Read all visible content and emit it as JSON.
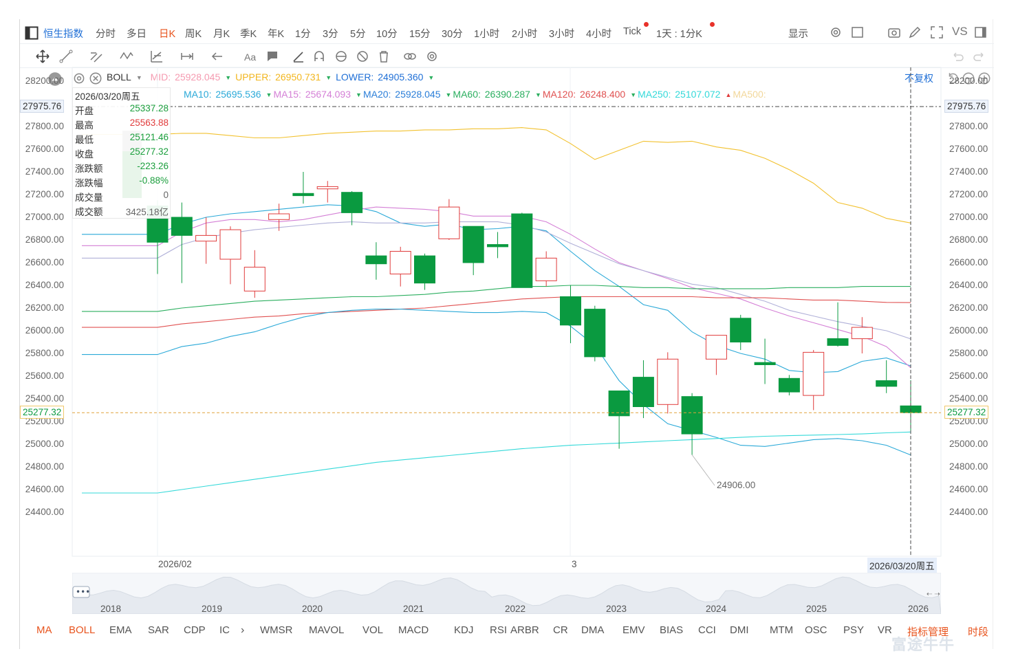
{
  "top_bar": {
    "title": "恒生指数",
    "periods": [
      "分时",
      "多日",
      "日K",
      "周K",
      "月K",
      "季K",
      "年K",
      "1分",
      "3分",
      "5分",
      "10分",
      "15分",
      "30分",
      "1小时",
      "2小时",
      "3小时",
      "4小时",
      "Tick"
    ],
    "active_period": "日K",
    "range_label": "1天 : 1分K",
    "display_label": "显示",
    "vs_label": "VS"
  },
  "indicator_header": {
    "name": "BOLL",
    "mid_label": "MID:",
    "mid_value": "25928.045",
    "upper_label": "UPPER:",
    "upper_value": "26950.731",
    "lower_label": "LOWER:",
    "lower_value": "24905.360",
    "fuquan_label": "不复权"
  },
  "ma_header": [
    {
      "label": "MA10:",
      "value": "25695.536",
      "color": "#2aa9d8",
      "arrow": "▼"
    },
    {
      "label": "MA15:",
      "value": "25674.093",
      "color": "#d47fd6",
      "arrow": "▼"
    },
    {
      "label": "MA20:",
      "value": "25928.045",
      "color": "#2a7ed8",
      "arrow": "▼"
    },
    {
      "label": "MA60:",
      "value": "26390.287",
      "color": "#2aae5e",
      "arrow": "▼"
    },
    {
      "label": "MA120:",
      "value": "26248.400",
      "color": "#e05050",
      "arrow": "▼"
    },
    {
      "label": "MA250:",
      "value": "25107.072",
      "color": "#33d9d9",
      "arrow": "▲"
    },
    {
      "label": "MA500:",
      "value": "",
      "color": "#f2d79a",
      "arrow": ""
    }
  ],
  "info_panel": {
    "date": "2026/03/20周五",
    "rows": [
      {
        "label": "开盘",
        "value": "25337.28",
        "color": "#1a9e3c"
      },
      {
        "label": "最高",
        "value": "25563.88",
        "color": "#e03b3b"
      },
      {
        "label": "最低",
        "value": "25121.46",
        "color": "#1a9e3c"
      },
      {
        "label": "收盘",
        "value": "25277.32",
        "color": "#1a9e3c"
      },
      {
        "label": "涨跌额",
        "value": "-223.26",
        "color": "#1a9e3c"
      },
      {
        "label": "涨跌幅",
        "value": "-0.88%",
        "color": "#1a9e3c"
      },
      {
        "label": "成交量",
        "value": "0",
        "color": "#666666"
      },
      {
        "label": "成交额",
        "value": "3425.18亿",
        "color": "#666666"
      }
    ]
  },
  "price_axis": {
    "ticks": [
      "28200.00",
      "28000.00",
      "27800.00",
      "27600.00",
      "27400.00",
      "27200.00",
      "27000.00",
      "26800.00",
      "26600.00",
      "26400.00",
      "26200.00",
      "26000.00",
      "25800.00",
      "25600.00",
      "25400.00",
      "25200.00",
      "25000.00",
      "24800.00",
      "24600.00",
      "24400.00"
    ],
    "crosshair_label": "27975.76",
    "current_label": "25277.32",
    "min_annotation": "24906.00"
  },
  "date_axis": {
    "labels": [
      "2026/02",
      "3"
    ],
    "cursor_label": "2026/03/20周五"
  },
  "navigator": {
    "years": [
      "2018",
      "2019",
      "2020",
      "2021",
      "2022",
      "2023",
      "2024",
      "2025",
      "2026"
    ]
  },
  "bottom_indicators": {
    "items": [
      "MA",
      "BOLL",
      "EMA",
      "SAR",
      "CDP",
      "IC",
      "WMSR",
      "MAVOL",
      "VOL",
      "MACD",
      "KDJ",
      "RSI",
      "ARBR",
      "CR",
      "DMA",
      "EMV",
      "BIAS",
      "CCI",
      "DMI",
      "MTM",
      "OSC",
      "PSY",
      "VR"
    ],
    "active": [
      "MA",
      "BOLL"
    ],
    "manage_label": "指标管理",
    "period_label": "时段"
  },
  "watermark": "富途牛牛",
  "chart_data": {
    "type": "candlestick",
    "title": "恒生指数",
    "period": "日K",
    "ylim": [
      24300,
      28350
    ],
    "y_ticks": [
      24400,
      24600,
      24800,
      25000,
      25200,
      25400,
      25600,
      25800,
      26000,
      26200,
      26400,
      26600,
      26800,
      27000,
      27200,
      27400,
      27600,
      27800,
      28000,
      28200
    ],
    "x_labels": [
      "2026/02",
      "3"
    ],
    "up_color": "#e03b3b",
    "down_color": "#0a9a40",
    "candles": [
      {
        "o": 27100,
        "h": 27150,
        "l": 26500,
        "c": 26780
      },
      {
        "o": 27000,
        "h": 27130,
        "l": 26420,
        "c": 26840
      },
      {
        "o": 26790,
        "h": 27000,
        "l": 26590,
        "c": 26840
      },
      {
        "o": 26630,
        "h": 26920,
        "l": 26410,
        "c": 26890
      },
      {
        "o": 26350,
        "h": 26710,
        "l": 26290,
        "c": 26560
      },
      {
        "o": 26980,
        "h": 27120,
        "l": 26880,
        "c": 27030
      },
      {
        "o": 27210,
        "h": 27400,
        "l": 27120,
        "c": 27190
      },
      {
        "o": 27250,
        "h": 27320,
        "l": 27130,
        "c": 27270
      },
      {
        "o": 27220,
        "h": 27230,
        "l": 26930,
        "c": 27040
      },
      {
        "o": 26660,
        "h": 26780,
        "l": 26450,
        "c": 26590
      },
      {
        "o": 26500,
        "h": 26740,
        "l": 26390,
        "c": 26700
      },
      {
        "o": 26660,
        "h": 26680,
        "l": 26360,
        "c": 26420
      },
      {
        "o": 26810,
        "h": 27160,
        "l": 26800,
        "c": 27090
      },
      {
        "o": 26920,
        "h": 26920,
        "l": 26490,
        "c": 26600
      },
      {
        "o": 26760,
        "h": 26870,
        "l": 26640,
        "c": 26740
      },
      {
        "o": 27030,
        "h": 27040,
        "l": 26380,
        "c": 26380
      },
      {
        "o": 26440,
        "h": 26700,
        "l": 26390,
        "c": 26640
      },
      {
        "o": 26300,
        "h": 26400,
        "l": 25890,
        "c": 26050
      },
      {
        "o": 26190,
        "h": 26220,
        "l": 25730,
        "c": 25770
      },
      {
        "o": 25470,
        "h": 25470,
        "l": 24960,
        "c": 25250
      },
      {
        "o": 25590,
        "h": 25740,
        "l": 25230,
        "c": 25330
      },
      {
        "o": 25350,
        "h": 25810,
        "l": 25270,
        "c": 25750
      },
      {
        "o": 25420,
        "h": 25450,
        "l": 24906,
        "c": 25090
      },
      {
        "o": 25750,
        "h": 25960,
        "l": 25610,
        "c": 25960
      },
      {
        "o": 26110,
        "h": 26140,
        "l": 25830,
        "c": 25900
      },
      {
        "o": 25720,
        "h": 25930,
        "l": 25530,
        "c": 25700
      },
      {
        "o": 25580,
        "h": 25610,
        "l": 25430,
        "c": 25460
      },
      {
        "o": 25430,
        "h": 25830,
        "l": 25300,
        "c": 25810
      },
      {
        "o": 25930,
        "h": 26250,
        "l": 25860,
        "c": 25870
      },
      {
        "o": 25930,
        "h": 26120,
        "l": 25800,
        "c": 26030
      },
      {
        "o": 25560,
        "h": 25740,
        "l": 25450,
        "c": 25510
      },
      {
        "o": 25337.28,
        "h": 25563.88,
        "l": 25121.46,
        "c": 25277.32
      }
    ],
    "series": [
      {
        "name": "UPPER",
        "color": "#f2c12e",
        "values": [
          27730,
          27740,
          27740,
          27720,
          27700,
          27700,
          27720,
          27740,
          27750,
          27760,
          27760,
          27770,
          27770,
          27780,
          27780,
          27790,
          27770,
          27650,
          27510,
          27590,
          27670,
          27660,
          27670,
          27620,
          27590,
          27520,
          27420,
          27300,
          27130,
          27080,
          26990,
          26950
        ]
      },
      {
        "name": "MA10",
        "color": "#2aa9d8",
        "values": [
          26850,
          26940,
          27000,
          27030,
          27050,
          27070,
          27090,
          27110,
          27100,
          27050,
          26950,
          26920,
          26940,
          26890,
          26900,
          26920,
          26880,
          26700,
          26530,
          26390,
          26230,
          26180,
          25990,
          25870,
          25800,
          25750,
          25650,
          25630,
          25640,
          25730,
          25760,
          25690
        ]
      },
      {
        "name": "MA15",
        "color": "#d47fd6",
        "values": [
          26750,
          26870,
          26950,
          26980,
          26980,
          26960,
          26980,
          27020,
          27060,
          27090,
          27080,
          27070,
          27050,
          27010,
          27010,
          27010,
          26960,
          26850,
          26720,
          26600,
          26530,
          26460,
          26380,
          26330,
          26280,
          26200,
          26130,
          26070,
          26010,
          25950,
          25860,
          25674
        ]
      },
      {
        "name": "MA20",
        "color": "#b0b0d8",
        "values": [
          26640,
          26760,
          26820,
          26860,
          26890,
          26910,
          26930,
          26950,
          26960,
          26950,
          26950,
          26950,
          26960,
          26960,
          26960,
          26930,
          26870,
          26770,
          26680,
          26590,
          26530,
          26470,
          26410,
          26380,
          26320,
          26260,
          26180,
          26130,
          26080,
          26040,
          26000,
          25928
        ]
      },
      {
        "name": "MA60",
        "color": "#2aae5e",
        "values": [
          26170,
          26200,
          26220,
          26240,
          26260,
          26270,
          26280,
          26290,
          26300,
          26300,
          26310,
          26320,
          26340,
          26350,
          26370,
          26390,
          26390,
          26400,
          26400,
          26390,
          26380,
          26380,
          26370,
          26370,
          26370,
          26370,
          26380,
          26380,
          26380,
          26390,
          26390,
          26390
        ]
      },
      {
        "name": "MA120",
        "color": "#e05050",
        "values": [
          26030,
          26060,
          26080,
          26100,
          26120,
          26130,
          26150,
          26160,
          26170,
          26180,
          26190,
          26200,
          26220,
          26240,
          26260,
          26280,
          26290,
          26300,
          26300,
          26300,
          26300,
          26300,
          26300,
          26290,
          26290,
          26290,
          26280,
          26270,
          26270,
          26260,
          26250,
          26248
        ]
      },
      {
        "name": "LOWER",
        "color": "#2aa9d8",
        "values": [
          25790,
          25860,
          25890,
          25950,
          25990,
          26060,
          26120,
          26160,
          26180,
          26190,
          26190,
          26180,
          26170,
          26160,
          26160,
          26170,
          26160,
          26040,
          25870,
          25560,
          25350,
          25180,
          25120,
          25060,
          24990,
          24980,
          25010,
          25040,
          25050,
          25030,
          24990,
          24905
        ]
      },
      {
        "name": "MA250",
        "color": "#33d9d9",
        "values": [
          24570,
          24600,
          24630,
          24660,
          24690,
          24720,
          24750,
          24780,
          24810,
          24840,
          24860,
          24880,
          24900,
          24920,
          24940,
          24960,
          24975,
          24990,
          25000,
          25010,
          25020,
          25030,
          25040,
          25050,
          25060,
          25070,
          25075,
          25080,
          25085,
          25090,
          25100,
          25107
        ]
      }
    ]
  }
}
